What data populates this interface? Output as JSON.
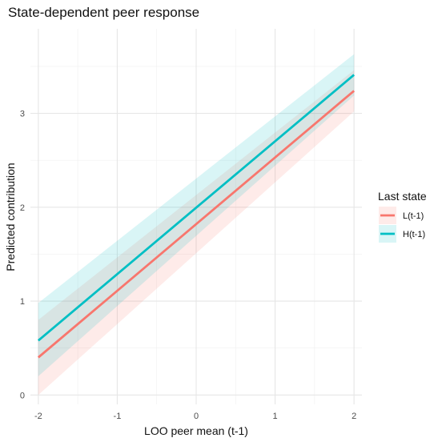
{
  "chart_data": {
    "type": "line",
    "title": "State-dependent peer response",
    "xlabel": "LOO peer mean (t-1)",
    "ylabel": "Predicted contribution",
    "xlim": [
      -2.1,
      2.1
    ],
    "ylim": [
      -0.1,
      3.9
    ],
    "x_ticks": [
      -2,
      -1,
      0,
      1,
      2
    ],
    "y_ticks": [
      0,
      1,
      2,
      3
    ],
    "x_tick_labels": [
      "-2",
      "-1",
      "0",
      "1",
      "2"
    ],
    "y_tick_labels": [
      "0",
      "1",
      "2",
      "3"
    ],
    "grid": true,
    "legend": {
      "title": "Last state",
      "position": "right"
    },
    "series": [
      {
        "name": "L(t-1)",
        "color": "#F8766D",
        "x": [
          -2,
          2
        ],
        "y": [
          0.4,
          3.24
        ],
        "ci_lower": [
          0.0,
          3.02
        ],
        "ci_upper": [
          0.8,
          3.46
        ]
      },
      {
        "name": "H(t-1)",
        "color": "#00BFC4",
        "x": [
          -2,
          2
        ],
        "y": [
          0.58,
          3.41
        ],
        "ci_lower": [
          0.2,
          3.19
        ],
        "ci_upper": [
          0.98,
          3.63
        ]
      }
    ]
  }
}
